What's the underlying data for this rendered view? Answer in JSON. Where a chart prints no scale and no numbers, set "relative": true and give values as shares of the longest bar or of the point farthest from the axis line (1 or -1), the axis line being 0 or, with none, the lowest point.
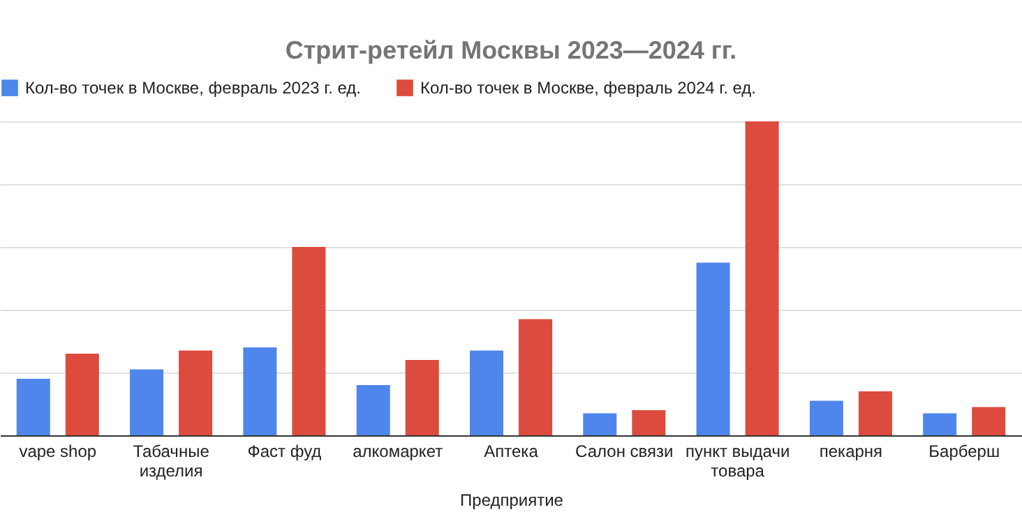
{
  "chart_data": {
    "type": "bar",
    "title": "Стрит-ретейл Москвы 2023—2024 гг.",
    "xlabel": "Предприятие",
    "relative": true,
    "grid": "y",
    "legend": "top",
    "categories": [
      "vape shop",
      "Табачные изделия",
      "Фаст фуд",
      "алкомаркет",
      "Аптека",
      "Салон связи",
      "пункт выдачи товара",
      "пекарня",
      "Барберш"
    ],
    "series": [
      {
        "name": "Кол-во точек в Москве, февраль 2023 г. ед.",
        "color": "#4f86ec",
        "values": [
          0.18,
          0.21,
          0.28,
          0.16,
          0.27,
          0.07,
          0.55,
          0.11,
          0.07
        ]
      },
      {
        "name": "Кол-во точек в Москве, февраль 2024 г. ед.",
        "color": "#dc4b3e",
        "values": [
          0.26,
          0.27,
          0.6,
          0.24,
          0.37,
          0.08,
          1,
          0.14,
          0.09
        ]
      }
    ]
  }
}
